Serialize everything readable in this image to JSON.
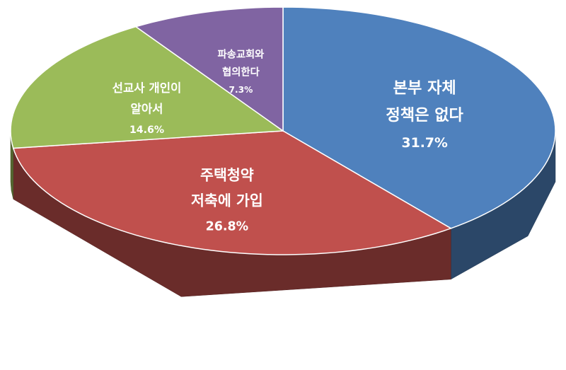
{
  "chart_data": {
    "type": "pie3d",
    "categories": [
      [
        "본부 자체",
        "정책은 없다"
      ],
      [
        "주택청약",
        "저축에 가입"
      ],
      [
        "선교사 개인이",
        "알아서"
      ],
      [
        "파송교회와",
        "협의한다"
      ]
    ],
    "values": [
      31.7,
      26.8,
      14.6,
      7.3
    ],
    "value_labels": [
      "31.7%",
      "26.8%",
      "14.6%",
      "7.3%"
    ],
    "colors": [
      "#4f81bd",
      "#c0504d",
      "#9bbb59",
      "#8064a2"
    ]
  }
}
